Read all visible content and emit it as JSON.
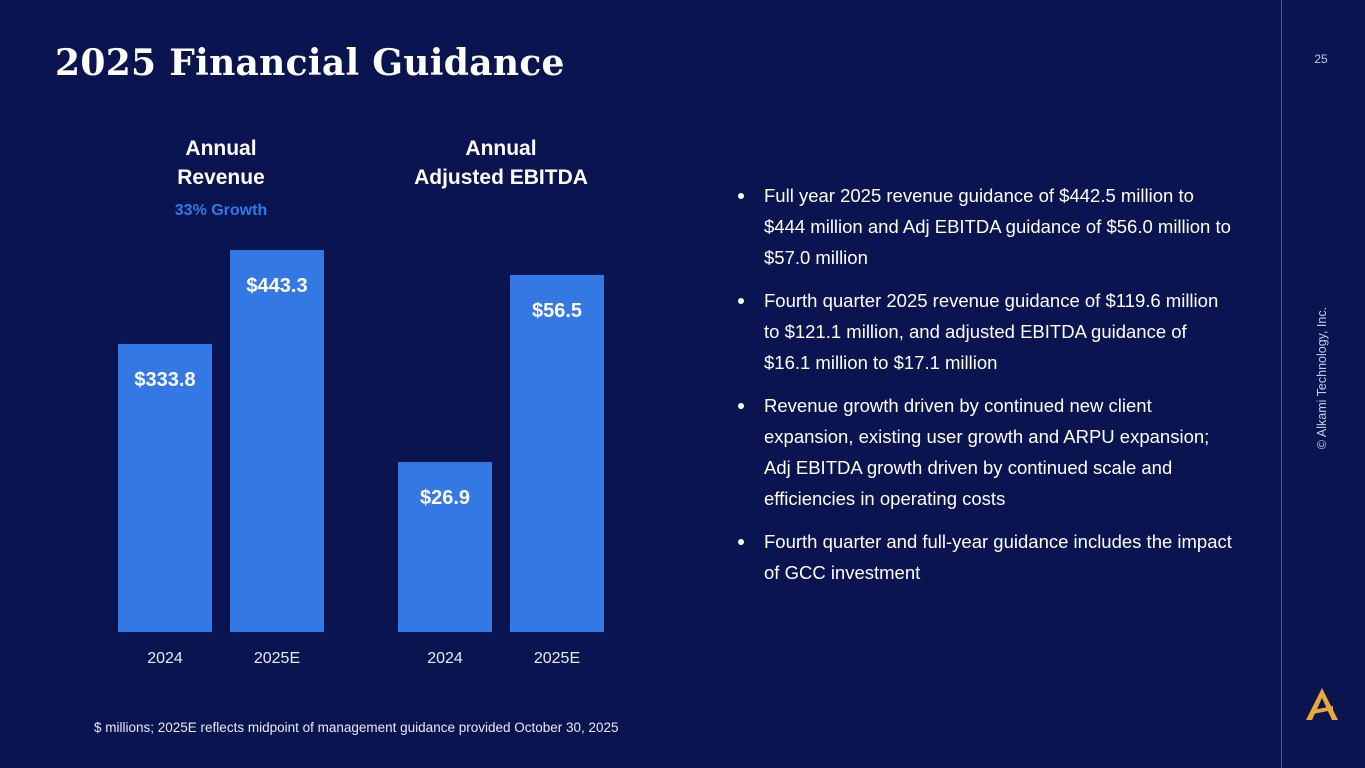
{
  "slide": {
    "title": "2025 Financial Guidance",
    "page_number": "25",
    "copyright": "© Alkami Technology, Inc.",
    "footnote": "$ millions; 2025E reflects midpoint of management guidance provided October 30, 2025",
    "logo_icon": "alkami-a-logo-icon",
    "colors": {
      "background": "#0a1450",
      "bar": "#3479e3",
      "accent": "#2f7ae6",
      "logo": "#e8a93a"
    }
  },
  "bullets": [
    "Full year 2025 revenue guidance of $442.5 million to $444 million and Adj EBITDA guidance of $56.0 million to $57.0 million",
    "Fourth quarter 2025 revenue guidance of $119.6 million to $121.1 million, and adjusted EBITDA guidance of $16.1 million to $17.1 million",
    "Revenue growth driven by continued new client expansion, existing user growth and ARPU expansion; Adj EBITDA growth driven by continued scale and efficiencies in operating costs",
    "Fourth quarter and full-year guidance includes the impact of GCC investment"
  ],
  "chart_data": [
    {
      "type": "bar",
      "title": "Annual Revenue",
      "title_lines": [
        "Annual",
        "Revenue"
      ],
      "subtitle": "33% Growth",
      "categories": [
        "2024",
        "2025E"
      ],
      "values": [
        333.8,
        443.3
      ],
      "value_labels": [
        "$333.8",
        "$443.3"
      ],
      "ylim": [
        0,
        443.3
      ]
    },
    {
      "type": "bar",
      "title": "Annual Adjusted EBITDA",
      "title_lines": [
        "Annual",
        "Adjusted EBITDA"
      ],
      "subtitle": "",
      "categories": [
        "2024",
        "2025E"
      ],
      "values": [
        26.9,
        56.5
      ],
      "value_labels": [
        "$26.9",
        "$56.5"
      ],
      "ylim": [
        0,
        60.5
      ]
    }
  ]
}
